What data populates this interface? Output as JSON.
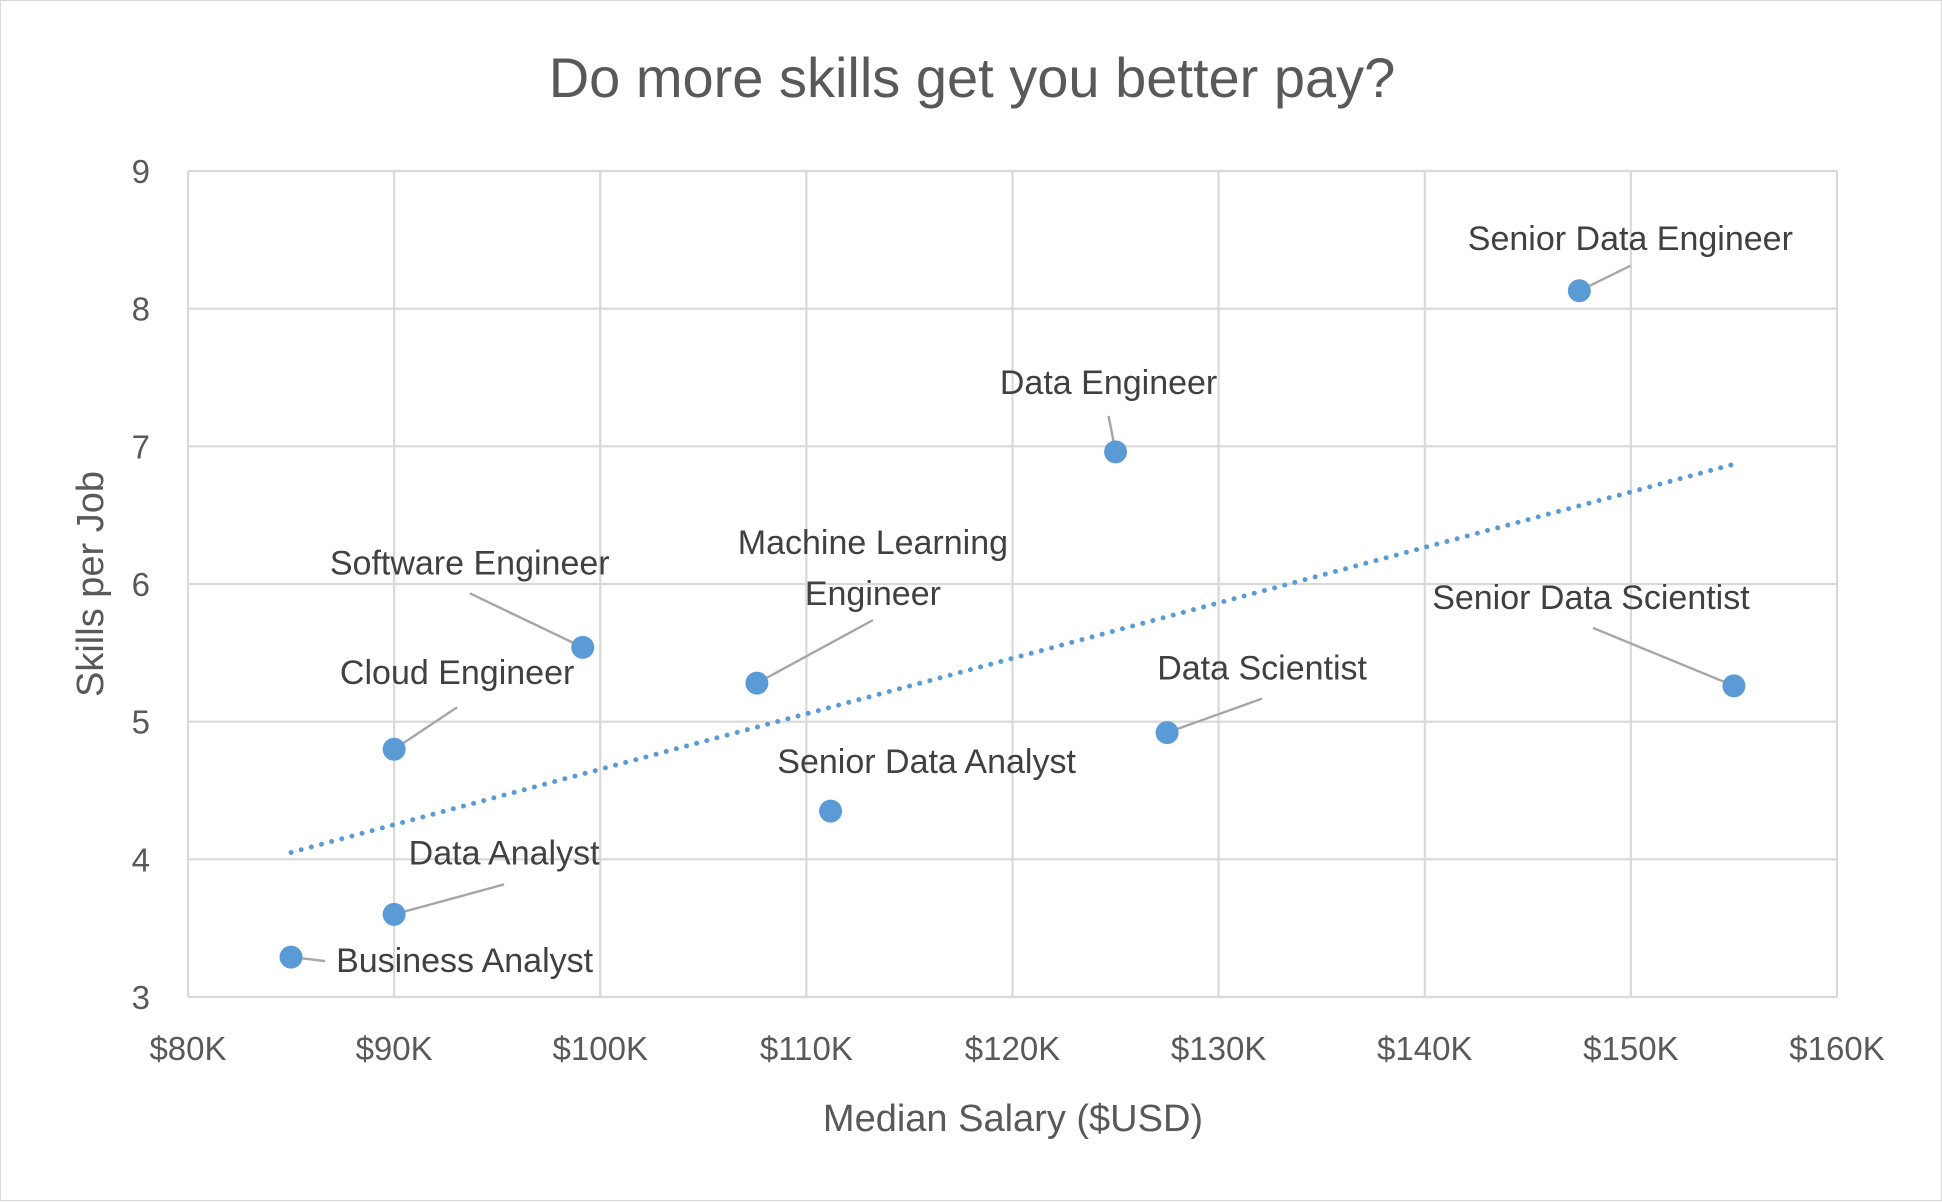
{
  "chart_data": {
    "type": "scatter",
    "title": "Do more skills get you better pay?",
    "xlabel": "Median Salary ($USD)",
    "ylabel": "Skills per Job",
    "xlim": [
      80000,
      160000
    ],
    "ylim": [
      3,
      9
    ],
    "x_ticks": [
      "$80K",
      "$90K",
      "$100K",
      "$110K",
      "$120K",
      "$130K",
      "$140K",
      "$150K",
      "$160K"
    ],
    "y_ticks": [
      "3",
      "4",
      "5",
      "6",
      "7",
      "8",
      "9"
    ],
    "grid": true,
    "legend": false,
    "marker_color": "#5b9bd5",
    "trendline": {
      "type": "linear",
      "style": "dotted",
      "color": "#5b9bd5",
      "from": [
        85000,
        4.05
      ],
      "to": [
        155000,
        6.87
      ]
    },
    "points": [
      {
        "label": "Business Analyst",
        "x": 85000,
        "y": 3.29
      },
      {
        "label": "Data Analyst",
        "x": 90000,
        "y": 3.6
      },
      {
        "label": "Cloud Engineer",
        "x": 90000,
        "y": 4.8
      },
      {
        "label": "Software Engineer",
        "x": 99150,
        "y": 5.54
      },
      {
        "label": "Machine Learning Engineer",
        "label_lines": [
          "Machine Learning",
          "Engineer"
        ],
        "x": 107600,
        "y": 5.28
      },
      {
        "label": "Senior Data Analyst",
        "x": 111175,
        "y": 4.35
      },
      {
        "label": "Data Engineer",
        "x": 125000,
        "y": 6.96
      },
      {
        "label": "Data Scientist",
        "x": 127500,
        "y": 4.92
      },
      {
        "label": "Senior Data Engineer",
        "x": 147500,
        "y": 8.13
      },
      {
        "label": "Senior Data Scientist",
        "x": 155000,
        "y": 5.26
      }
    ]
  }
}
